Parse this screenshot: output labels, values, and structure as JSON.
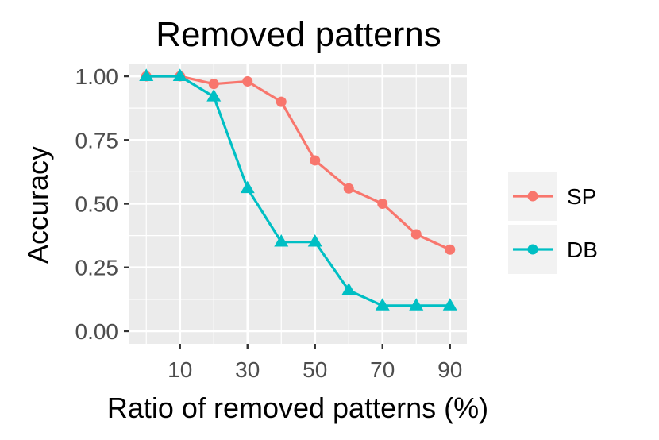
{
  "chart_data": {
    "type": "line",
    "title": "Removed patterns",
    "xlabel": "Ratio of removed patterns (%)",
    "ylabel": "Accuracy",
    "x": [
      0,
      10,
      20,
      30,
      40,
      50,
      60,
      70,
      80,
      90
    ],
    "xlim": [
      -5,
      95
    ],
    "ylim": [
      -0.05,
      1.05
    ],
    "x_ticks": [
      10,
      30,
      50,
      70,
      90
    ],
    "x_tick_labels": [
      "10",
      "30",
      "50",
      "70",
      "90"
    ],
    "x_minor_grid": [
      0,
      20,
      40,
      60,
      80
    ],
    "y_ticks": [
      0.0,
      0.25,
      0.5,
      0.75,
      1.0
    ],
    "y_tick_labels": [
      "0.00",
      "0.25",
      "0.50",
      "0.75",
      "1.00"
    ],
    "grid": true,
    "legend_position": "right",
    "series": [
      {
        "name": "SP",
        "color": "#F8766D",
        "marker": "circle",
        "values": [
          1.0,
          1.0,
          0.97,
          0.98,
          0.9,
          0.67,
          0.56,
          0.5,
          0.38,
          0.32
        ]
      },
      {
        "name": "DB",
        "color": "#00BFC4",
        "marker": "triangle",
        "values": [
          1.0,
          1.0,
          0.92,
          0.56,
          0.35,
          0.35,
          0.16,
          0.1,
          0.1,
          0.1
        ]
      }
    ]
  }
}
